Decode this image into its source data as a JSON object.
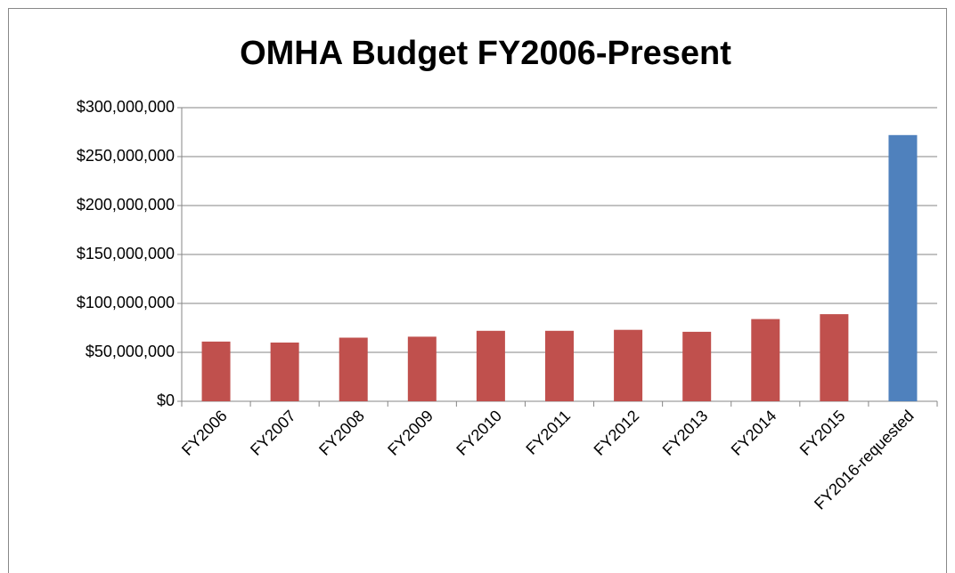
{
  "chart_data": {
    "type": "bar",
    "title": "OMHA Budget FY2006-Present",
    "categories": [
      "FY2006",
      "FY2007",
      "FY2008",
      "FY2009",
      "FY2010",
      "FY2011",
      "FY2012",
      "FY2013",
      "FY2014",
      "FY2015",
      "FY2016-requested"
    ],
    "values": [
      61000000,
      60000000,
      65000000,
      66000000,
      72000000,
      72000000,
      73000000,
      71000000,
      84000000,
      89000000,
      272000000
    ],
    "colors": [
      "#c0504d",
      "#c0504d",
      "#c0504d",
      "#c0504d",
      "#c0504d",
      "#c0504d",
      "#c0504d",
      "#c0504d",
      "#c0504d",
      "#c0504d",
      "#4f81bd"
    ],
    "ylim": [
      0,
      300000000
    ],
    "yticks": [
      {
        "value": 0,
        "label": "$0"
      },
      {
        "value": 50000000,
        "label": "$50,000,000"
      },
      {
        "value": 100000000,
        "label": "$100,000,000"
      },
      {
        "value": 150000000,
        "label": "$150,000,000"
      },
      {
        "value": 200000000,
        "label": "$200,000,000"
      },
      {
        "value": 250000000,
        "label": "$250,000,000"
      },
      {
        "value": 300000000,
        "label": "$300,000,000"
      }
    ],
    "grid": true
  }
}
